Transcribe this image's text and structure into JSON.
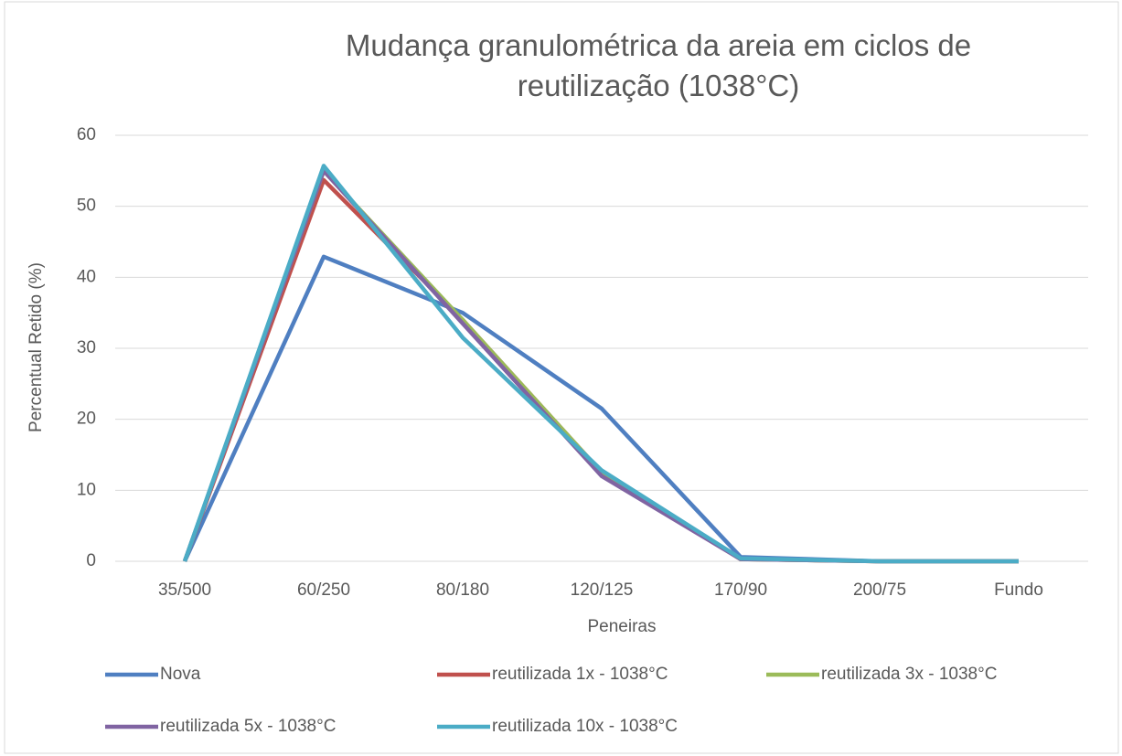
{
  "chart_data": {
    "type": "line",
    "title": "Mudança granulométrica da areia em ciclos de reutilização (1038°C)",
    "x_label": "Peneiras",
    "y_label": "Percentual Retido (%)",
    "categories": [
      "35/500",
      "60/250",
      "80/180",
      "120/125",
      "170/90",
      "200/75",
      "Fundo"
    ],
    "series": [
      {
        "name": "Nova",
        "color": "#4f7fc1",
        "values": [
          0,
          42.9,
          35,
          21.5,
          0.6,
          0,
          0
        ]
      },
      {
        "name": "reutilizada 1x - 1038°C",
        "color": "#c0504d",
        "values": [
          0,
          53.7,
          34,
          12.5,
          0.3,
          0,
          0
        ]
      },
      {
        "name": "reutilizada 3x - 1038°C",
        "color": "#9bbb59",
        "values": [
          0,
          55,
          34,
          12.5,
          0.3,
          0,
          0
        ]
      },
      {
        "name": "reutilizada 5x - 1038°C",
        "color": "#8064a2",
        "values": [
          0,
          55,
          33.5,
          12,
          0.3,
          0,
          0
        ]
      },
      {
        "name": "reutilizada 10x - 1038°C",
        "color": "#4bacc6",
        "values": [
          0,
          55.7,
          31.5,
          12.8,
          0.4,
          0,
          0
        ]
      }
    ],
    "ylim": [
      0,
      60
    ],
    "yticks": [
      0,
      10,
      20,
      30,
      40,
      50,
      60
    ],
    "grid": true,
    "legend": "bottom"
  }
}
